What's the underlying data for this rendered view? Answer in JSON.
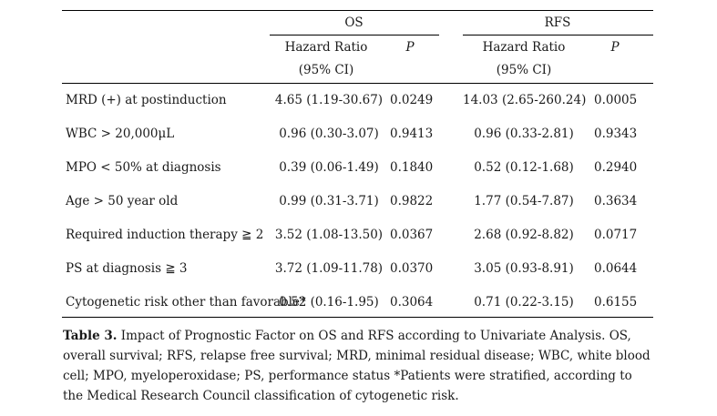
{
  "header": {
    "os": "OS",
    "rfs": "RFS",
    "hr_line1": "Hazard Ratio",
    "hr_line2": "(95% CI)",
    "p": "P"
  },
  "rows": [
    {
      "factor": "MRD (+) at postinduction",
      "os_hr": "4.65 (1.19-30.67)",
      "os_p": "0.0249",
      "rfs_hr": "14.03 (2.65-260.24)",
      "rfs_p": "0.0005"
    },
    {
      "factor": "WBC > 20,000μL",
      "os_hr": "0.96 (0.30-3.07)",
      "os_p": "0.9413",
      "rfs_hr": "0.96 (0.33-2.81)",
      "rfs_p": "0.9343"
    },
    {
      "factor": "MPO < 50% at diagnosis",
      "os_hr": "0.39 (0.06-1.49)",
      "os_p": "0.1840",
      "rfs_hr": "0.52 (0.12-1.68)",
      "rfs_p": "0.2940"
    },
    {
      "factor": "Age > 50 year old",
      "os_hr": "0.99 (0.31-3.71)",
      "os_p": "0.9822",
      "rfs_hr": "1.77 (0.54-7.87)",
      "rfs_p": "0.3634"
    },
    {
      "factor": "Required induction therapy ≧ 2",
      "os_hr": "3.52 (1.08-13.50)",
      "os_p": "0.0367",
      "rfs_hr": "2.68 (0.92-8.82)",
      "rfs_p": "0.0717"
    },
    {
      "factor": "PS at diagnosis ≧ 3",
      "os_hr": "3.72 (1.09-11.78)",
      "os_p": "0.0370",
      "rfs_hr": "3.05 (0.93-8.91)",
      "rfs_p": "0.0644"
    },
    {
      "factor": "Cytogenetic risk other than favorable*",
      "os_hr": "0.52 (0.16-1.95)",
      "os_p": "0.3064",
      "rfs_hr": "0.71 (0.22-3.15)",
      "rfs_p": "0.6155"
    }
  ],
  "caption": {
    "label": "Table 3.",
    "text": "Impact of Prognostic Factor on OS and RFS according to Univariate Analysis. OS, overall survival; RFS, relapse free survival; MRD, minimal residual disease; WBC, white blood cell; MPO, myeloperoxidase; PS, performance status *Patients were stratified, according to the Medical Research Council classification of cytogenetic risk."
  }
}
